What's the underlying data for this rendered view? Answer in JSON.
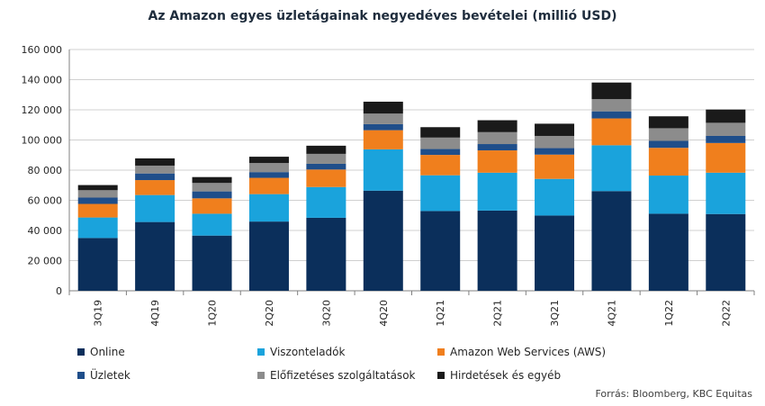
{
  "chart_data": {
    "type": "bar",
    "stacked": true,
    "title": "Az Amazon egyes üzletágainak negyedéves bevételei  (millió USD)",
    "categories": [
      "3Q19",
      "4Q19",
      "1Q20",
      "2Q20",
      "3Q20",
      "4Q20",
      "1Q21",
      "2Q21",
      "3Q21",
      "4Q21",
      "1Q22",
      "2Q22"
    ],
    "ylim": [
      0,
      160000
    ],
    "yticks": [
      0,
      20000,
      40000,
      60000,
      80000,
      100000,
      120000,
      140000,
      160000
    ],
    "ytick_labels": [
      "0",
      "20 000",
      "40 000",
      "60 000",
      "80 000",
      "100 000",
      "120 000",
      "140 000",
      "160 000"
    ],
    "grid": true,
    "legend_position": "bottom",
    "series": [
      {
        "name": "Online",
        "color": "#0b2f5b",
        "values": [
          35000,
          45600,
          36600,
          45900,
          48400,
          66400,
          52900,
          53200,
          49900,
          66100,
          51100,
          50900
        ]
      },
      {
        "name": "Viszonteladók",
        "color": "#1aa3dc",
        "values": [
          13600,
          17900,
          14500,
          18200,
          20400,
          27400,
          23700,
          25100,
          24300,
          30400,
          25300,
          27400
        ]
      },
      {
        "name": "Amazon Web Services (AWS)",
        "color": "#f07f1d",
        "values": [
          9000,
          9900,
          10200,
          10800,
          11600,
          12700,
          13500,
          14800,
          16100,
          17800,
          18400,
          19700
        ]
      },
      {
        "name": "Üzletek",
        "color": "#1f4e8a",
        "values": [
          4200,
          4400,
          4600,
          3800,
          3800,
          4000,
          3900,
          4200,
          4300,
          4700,
          4600,
          4700
        ]
      },
      {
        "name": "Előfizetéses szolgáltatások",
        "color": "#8c8c8c",
        "values": [
          4900,
          5200,
          5600,
          6000,
          6600,
          7000,
          7600,
          7900,
          8100,
          8100,
          8400,
          8700
        ]
      },
      {
        "name": "Hirdetések és egyéb",
        "color": "#1a1a1a",
        "values": [
          3400,
          4800,
          3900,
          4200,
          5400,
          7900,
          6900,
          7900,
          8100,
          11000,
          7900,
          8800
        ]
      }
    ]
  },
  "source": "Forrás: Bloomberg, KBC Equitas"
}
